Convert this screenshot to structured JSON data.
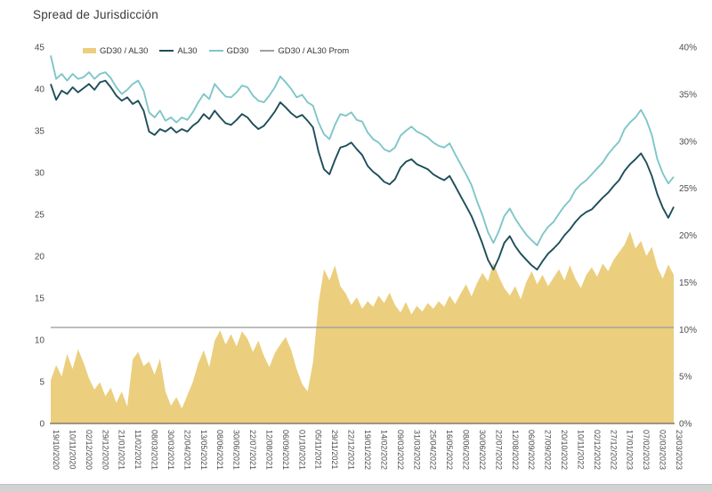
{
  "page": {
    "title": "Spread de Jurisdicción"
  },
  "colors": {
    "spread_area": "#EBCF7E",
    "al30_line": "#1D4E5A",
    "gd30_line": "#7FC6C9",
    "prom_line": "#A0A0A0",
    "axis_text": "#4d4d4d",
    "axis_line": "#444444"
  },
  "chart_data": {
    "type": "line",
    "title": "Spread de Jurisdicción",
    "xlabel": "",
    "ylabel_left": "",
    "ylabel_right": "",
    "grid": false,
    "legend_position": "top-left-inside",
    "left_axis": {
      "min": 0,
      "max": 45,
      "ticks": [
        45,
        40,
        35,
        30,
        25,
        20,
        15,
        10,
        5,
        0
      ]
    },
    "right_axis": {
      "min": 0,
      "max": 40,
      "ticks": [
        40,
        35,
        30,
        25,
        20,
        15,
        10,
        5,
        0
      ],
      "tick_labels": [
        "40%",
        "35%",
        "30%",
        "25%",
        "20%",
        "15%",
        "10%",
        "5%",
        "0%"
      ]
    },
    "x_labels": [
      "19/10/2020",
      "10/11/2020",
      "02/12/2020",
      "29/12/2020",
      "21/01/2021",
      "11/02/2021",
      "08/03/2021",
      "30/03/2021",
      "22/04/2021",
      "13/05/2021",
      "08/06/2021",
      "30/06/2021",
      "22/07/2021",
      "12/08/2021",
      "06/09/2021",
      "01/10/2021",
      "05/11/2021",
      "29/11/2021",
      "22/12/2021",
      "19/01/2022",
      "14/02/2022",
      "09/03/2022",
      "31/03/2022",
      "25/04/2022",
      "16/05/2022",
      "08/06/2022",
      "30/06/2022",
      "22/07/2022",
      "12/08/2022",
      "06/09/2022",
      "27/09/2022",
      "20/10/2022",
      "10/11/2022",
      "02/12/2022",
      "27/12/2022",
      "17/01/2023",
      "07/02/2023",
      "02/03/2023",
      "23/03/2023"
    ],
    "legend": [
      {
        "label": "GD30 / AL30",
        "color": "#EBCF7E",
        "type": "area"
      },
      {
        "label": "AL30",
        "color": "#1D4E5A",
        "type": "line"
      },
      {
        "label": "GD30",
        "color": "#7FC6C9",
        "type": "line"
      },
      {
        "label": "GD30 / AL30 Prom",
        "color": "#A0A0A0",
        "type": "line"
      }
    ],
    "series": [
      {
        "name": "GD30 / AL30",
        "axis": "right",
        "type": "area",
        "color": "#EBCF7E",
        "values": [
          4.6,
          6.2,
          5.0,
          7.4,
          5.8,
          7.9,
          6.5,
          4.8,
          3.6,
          4.4,
          2.9,
          3.8,
          2.2,
          3.4,
          1.8,
          6.8,
          7.6,
          6.1,
          6.6,
          5.2,
          6.9,
          3.4,
          1.9,
          2.8,
          1.6,
          3.0,
          4.4,
          6.4,
          7.8,
          6.0,
          8.8,
          9.9,
          8.4,
          9.5,
          8.2,
          9.8,
          9.0,
          7.6,
          8.8,
          7.2,
          6.0,
          7.5,
          8.4,
          9.2,
          7.8,
          5.8,
          4.2,
          3.4,
          6.5,
          12.8,
          16.4,
          15.2,
          16.8,
          14.6,
          13.8,
          12.6,
          13.4,
          12.2,
          13.0,
          12.4,
          13.6,
          12.8,
          13.9,
          12.6,
          11.8,
          12.9,
          11.6,
          12.5,
          11.9,
          12.8,
          12.2,
          13.0,
          12.4,
          13.6,
          12.7,
          13.8,
          14.8,
          13.5,
          14.9,
          16.0,
          15.1,
          17.1,
          15.6,
          14.4,
          13.6,
          14.6,
          13.2,
          15.0,
          16.2,
          14.8,
          15.8,
          14.6,
          15.5,
          16.4,
          15.2,
          16.8,
          15.4,
          14.4,
          15.8,
          16.6,
          15.6,
          17.0,
          16.2,
          17.4,
          18.2,
          19.0,
          20.4,
          18.6,
          19.4,
          17.8,
          18.8,
          16.6,
          15.4,
          16.9,
          15.8
        ]
      },
      {
        "name": "AL30",
        "axis": "left",
        "type": "line",
        "color": "#1D4E5A",
        "values": [
          40.6,
          38.7,
          39.8,
          39.4,
          40.2,
          39.6,
          40.1,
          40.6,
          39.9,
          40.8,
          41.0,
          40.2,
          39.2,
          38.6,
          39.0,
          38.2,
          38.6,
          37.4,
          34.9,
          34.5,
          35.2,
          34.9,
          35.4,
          34.8,
          35.2,
          34.9,
          35.6,
          36.1,
          37.0,
          36.4,
          37.4,
          36.6,
          35.9,
          35.7,
          36.3,
          37.0,
          36.6,
          35.8,
          35.2,
          35.6,
          36.4,
          37.3,
          38.4,
          37.8,
          37.1,
          36.6,
          36.9,
          36.2,
          35.4,
          32.5,
          30.4,
          29.8,
          31.5,
          33.0,
          33.2,
          33.6,
          32.8,
          32.1,
          30.8,
          30.1,
          29.6,
          28.9,
          28.6,
          29.2,
          30.6,
          31.3,
          31.6,
          31.0,
          30.7,
          30.4,
          29.8,
          29.4,
          29.1,
          29.6,
          28.4,
          27.2,
          26.0,
          24.8,
          23.2,
          21.5,
          19.6,
          18.4,
          19.8,
          21.6,
          22.4,
          21.2,
          20.3,
          19.6,
          18.9,
          18.4,
          19.4,
          20.3,
          20.9,
          21.6,
          22.5,
          23.2,
          24.1,
          24.8,
          25.3,
          25.6,
          26.3,
          27.0,
          27.6,
          28.4,
          29.1,
          30.2,
          31.0,
          31.6,
          32.3,
          31.2,
          29.6,
          27.4,
          25.8,
          24.6,
          25.9
        ]
      },
      {
        "name": "GD30",
        "axis": "left",
        "type": "line",
        "color": "#7FC6C9",
        "values": [
          44.0,
          41.2,
          41.8,
          41.0,
          41.8,
          41.2,
          41.4,
          42.0,
          41.2,
          41.8,
          42.0,
          41.3,
          40.2,
          39.4,
          39.9,
          40.6,
          41.0,
          39.8,
          37.2,
          36.6,
          37.4,
          36.2,
          36.6,
          36.0,
          36.6,
          36.3,
          37.2,
          38.4,
          39.4,
          38.8,
          40.6,
          39.8,
          39.1,
          39.0,
          39.6,
          40.4,
          40.2,
          39.2,
          38.6,
          38.4,
          39.2,
          40.2,
          41.5,
          40.8,
          40.0,
          39.0,
          39.3,
          38.4,
          38.0,
          36.0,
          34.6,
          34.0,
          35.7,
          37.0,
          36.8,
          37.2,
          36.3,
          36.1,
          34.8,
          34.0,
          33.6,
          32.8,
          32.5,
          33.0,
          34.4,
          35.0,
          35.5,
          34.9,
          34.6,
          34.2,
          33.6,
          33.2,
          33.0,
          33.5,
          32.2,
          31.0,
          29.8,
          28.5,
          26.6,
          24.9,
          22.9,
          21.6,
          23.0,
          24.8,
          25.7,
          24.5,
          23.5,
          22.6,
          21.9,
          21.3,
          22.6,
          23.5,
          24.1,
          25.1,
          26.0,
          26.7,
          27.9,
          28.6,
          29.1,
          29.8,
          30.5,
          31.2,
          32.2,
          33.0,
          33.7,
          35.2,
          36.0,
          36.6,
          37.5,
          36.3,
          34.5,
          31.6,
          29.9,
          28.7,
          29.5
        ]
      },
      {
        "name": "GD30 / AL30 Prom",
        "axis": "right",
        "type": "hline",
        "color": "#A0A0A0",
        "value": 10.2
      }
    ]
  }
}
